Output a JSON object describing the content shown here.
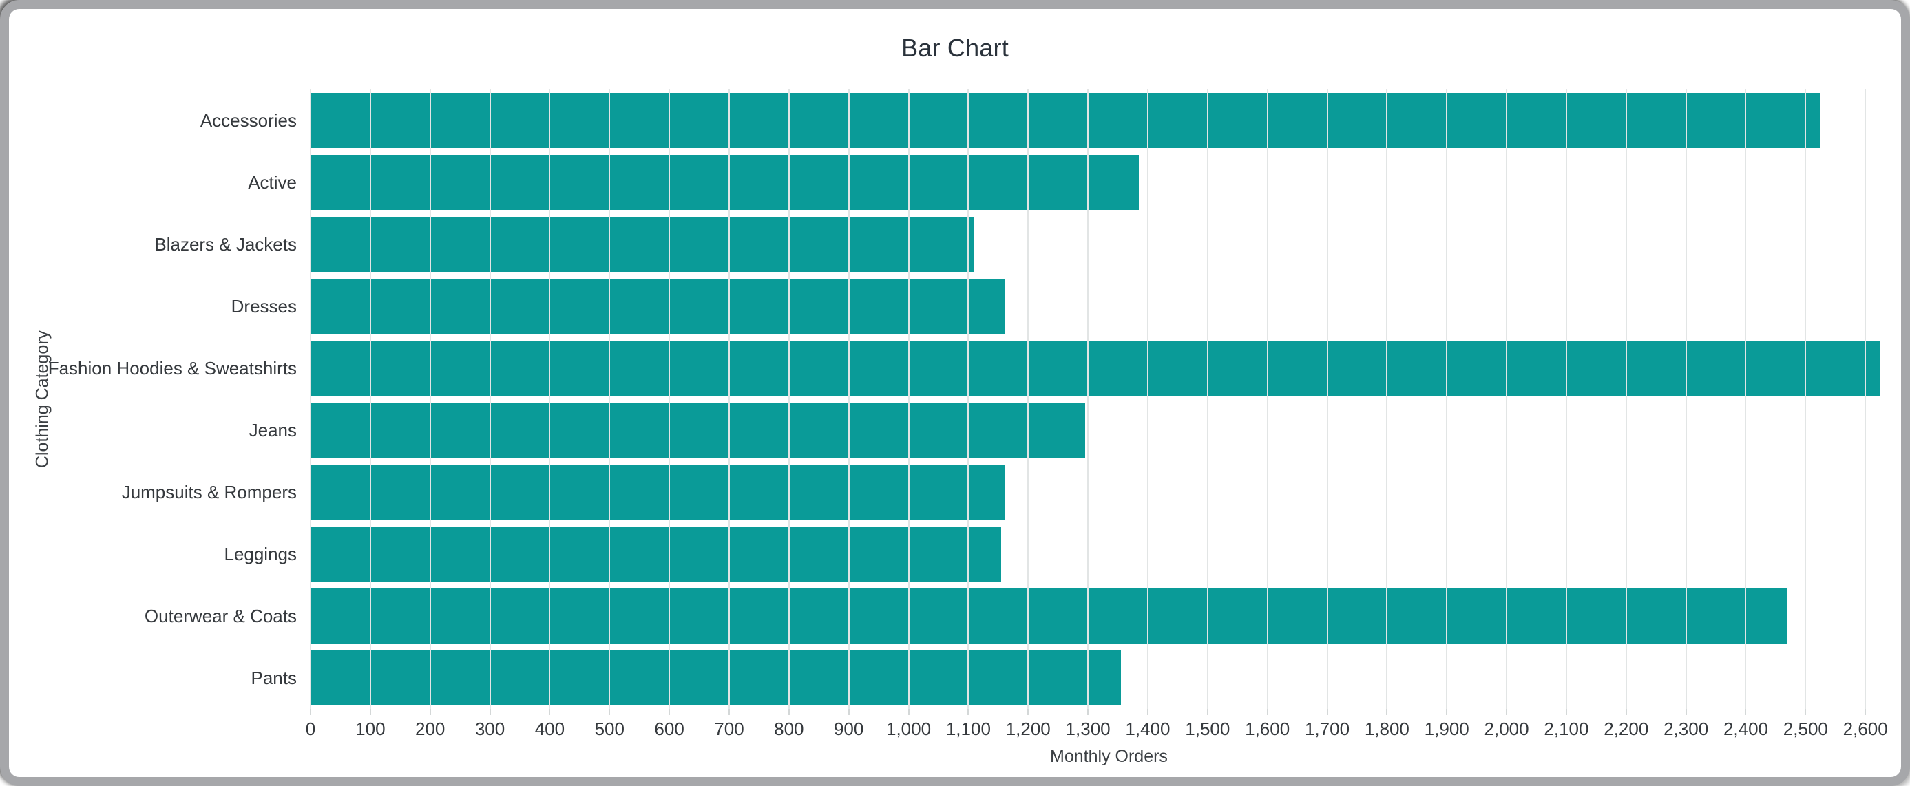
{
  "window": {
    "frame_color": "#a6a7aa",
    "background_color": "#ffffff"
  },
  "chart_data": {
    "type": "bar",
    "orientation": "horizontal",
    "title": "Bar Chart",
    "xlabel": "Monthly Orders",
    "ylabel": "Clothing Category",
    "categories": [
      "Accessories",
      "Active",
      "Blazers & Jackets",
      "Dresses",
      "Fashion Hoodies & Sweatshirts",
      "Jeans",
      "Jumpsuits & Rompers",
      "Leggings",
      "Outerwear & Coats",
      "Pants"
    ],
    "values": [
      2525,
      1385,
      1110,
      1160,
      2625,
      1295,
      1160,
      1155,
      2470,
      1355
    ],
    "xlim": [
      0,
      2670
    ],
    "xticks": [
      0,
      100,
      200,
      300,
      400,
      500,
      600,
      700,
      800,
      900,
      1000,
      1100,
      1200,
      1300,
      1400,
      1500,
      1600,
      1700,
      1800,
      1900,
      2000,
      2100,
      2200,
      2300,
      2400,
      2500,
      2600
    ],
    "xtick_labels": [
      "0",
      "100",
      "200",
      "300",
      "400",
      "500",
      "600",
      "700",
      "800",
      "900",
      "1,000",
      "1,100",
      "1,200",
      "1,300",
      "1,400",
      "1,500",
      "1,600",
      "1,700",
      "1,800",
      "1,900",
      "2,000",
      "2,100",
      "2,200",
      "2,300",
      "2,400",
      "2,500",
      "2,600"
    ],
    "grid": true,
    "legend": false,
    "bar_color": "#0a9b98",
    "gridline_color": "#e2e5e5",
    "tick_stub_color": "#d4d8d8",
    "title_color": "#2a323b",
    "tick_label_color": "#35393d",
    "axis_title_color": "#3c4044"
  }
}
